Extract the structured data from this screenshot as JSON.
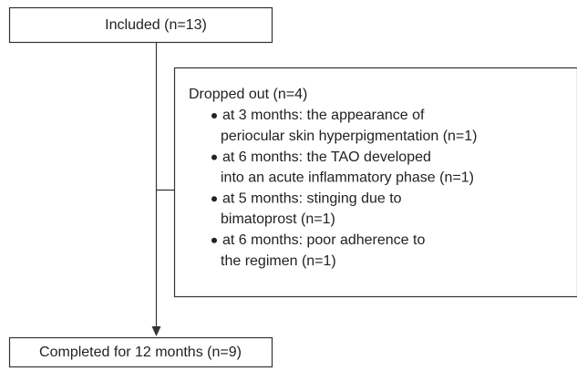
{
  "nodes": [
    {
      "label": "Included (n=13)"
    },
    {
      "label": "Dropped out (n=4)",
      "items": [
        {
          "lines": [
            "at 3 months: the appearance of",
            "periocular skin hyperpigmentation (n=1)"
          ]
        },
        {
          "lines": [
            "at 6 months: the TAO developed",
            "into an acute inflammatory phase (n=1)"
          ]
        },
        {
          "lines": [
            "at 5 months: stinging due to",
            "bimatoprost (n=1)"
          ]
        },
        {
          "lines": [
            "at 6 months: poor adherence to",
            "the regimen (n=1)"
          ]
        }
      ]
    },
    {
      "label": "Completed for 12 months (n=9)"
    }
  ]
}
